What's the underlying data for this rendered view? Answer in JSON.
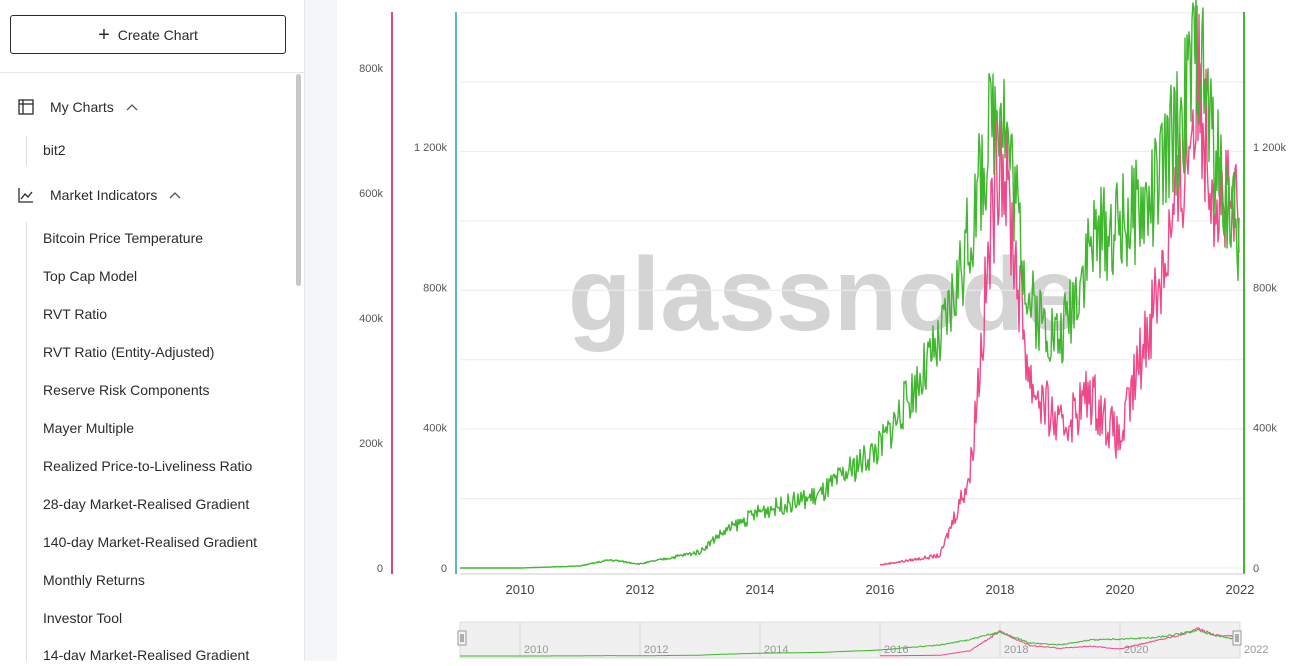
{
  "sidebar": {
    "create_label": "Create Chart",
    "my_charts": {
      "label": "My Charts",
      "icon": "layout-icon",
      "items": [
        "bit2"
      ]
    },
    "market_indicators": {
      "label": "Market Indicators",
      "icon": "line-chart-icon",
      "items": [
        "Bitcoin Price Temperature",
        "Top Cap Model",
        "RVT Ratio",
        "RVT Ratio (Entity-Adjusted)",
        "Reserve Risk Components",
        "Mayer Multiple",
        "Realized Price-to-Liveliness Ratio",
        "28-day Market-Realised Gradient",
        "140-day Market-Realised Gradient",
        "Monthly Returns",
        "Investor Tool",
        "14-day Market-Realised Gradient"
      ]
    }
  },
  "chart": {
    "watermark": "glassnode",
    "colors": {
      "pink": "#f0498a",
      "green": "#3fb82e",
      "blue_axis": "#5ab8c8",
      "green_axis": "#3fb82e",
      "pink_axis": "#e0457f"
    },
    "left_outer_ticks": [
      "0",
      "200k",
      "400k",
      "600k",
      "800k"
    ],
    "left_inner_ticks": [
      "0",
      "400k",
      "800k",
      "1 200k"
    ],
    "right_ticks": [
      "0",
      "400k",
      "800k",
      "1 200k"
    ],
    "x_ticks": [
      "2010",
      "2012",
      "2014",
      "2016",
      "2018",
      "2020",
      "2022"
    ],
    "navigator_ticks": [
      "2010",
      "2012",
      "2014",
      "2016",
      "2018",
      "2020",
      "2022"
    ]
  },
  "chart_data": {
    "type": "line",
    "x": [
      2009,
      2010,
      2011,
      2011.5,
      2012,
      2013,
      2013.3,
      2014,
      2015,
      2016,
      2017,
      2017.5,
      2018,
      2018.5,
      2019,
      2019.5,
      2020,
      2020.5,
      2021,
      2021.3,
      2021.6,
      2022
    ],
    "series": [
      {
        "color": "#3fb82e",
        "axis": "right",
        "values": [
          0,
          0,
          5000,
          20000,
          10000,
          40000,
          80000,
          140000,
          180000,
          300000,
          550000,
          820000,
          1200000,
          650000,
          560000,
          800000,
          850000,
          900000,
          1100000,
          1300000,
          1000000,
          800000
        ]
      },
      {
        "color": "#f0498a",
        "axis": "left_outer",
        "start": 2015.6,
        "values": [
          null,
          null,
          null,
          null,
          null,
          null,
          null,
          null,
          null,
          5000,
          20000,
          150000,
          700000,
          300000,
          220000,
          280000,
          200000,
          400000,
          600000,
          780000,
          600000,
          550000
        ]
      }
    ],
    "xlim": [
      2009,
      2022
    ],
    "left_outer_ylim": [
      0,
      800000
    ],
    "right_ylim": [
      0,
      1400000
    ]
  }
}
